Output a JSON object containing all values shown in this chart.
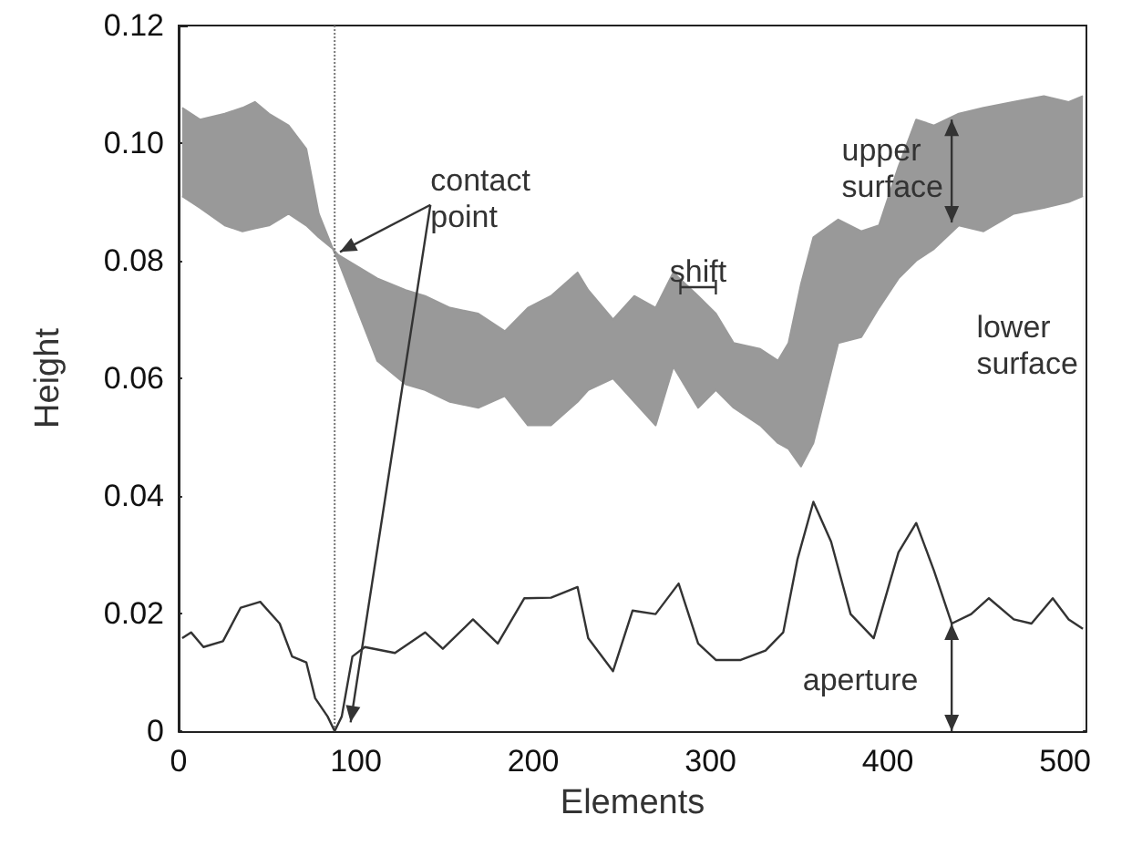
{
  "chart_data": {
    "type": "area",
    "xlabel": "Elements",
    "ylabel": "Height",
    "xlim": [
      0,
      512
    ],
    "xticks": [
      0,
      100,
      200,
      300,
      400,
      500
    ],
    "ylim": [
      0,
      0.12
    ],
    "yticks": [
      0,
      0.02,
      0.04,
      0.06,
      {
        "value": 0.08,
        "label": "0.08"
      },
      {
        "value": 0.1,
        "label": "0.10"
      },
      0.12
    ],
    "grid": false,
    "series": [
      {
        "type": "area",
        "color": "#999999",
        "x": [
          2,
          12,
          26,
          36,
          43,
          51,
          62,
          72,
          79,
          87,
          90,
          112,
          128,
          139,
          153,
          169,
          184,
          197,
          210,
          225,
          231,
          245,
          257,
          269,
          279,
          293,
          303,
          313,
          328,
          338,
          344,
          351,
          358,
          372,
          385,
          395,
          406,
          416,
          426,
          440,
          454,
          471,
          488,
          502,
          510
        ],
        "values": [
          0.106,
          0.104,
          0.105,
          0.106,
          0.107,
          0.105,
          0.103,
          0.099,
          0.088,
          0.082,
          0.081,
          0.077,
          0.075,
          0.074,
          0.072,
          0.071,
          0.068,
          0.072,
          0.074,
          0.078,
          0.075,
          0.07,
          0.074,
          0.072,
          0.078,
          0.074,
          0.071,
          0.066,
          0.065,
          0.063,
          0.066,
          0.076,
          0.084,
          0.087,
          0.085,
          0.086,
          0.096,
          0.104,
          0.103,
          0.105,
          0.106,
          0.107,
          0.108,
          0.107,
          0.108
        ]
      },
      {
        "type": "area",
        "color": "#999999",
        "x": [
          2,
          12,
          26,
          36,
          43,
          51,
          62,
          72,
          79,
          87,
          90,
          112,
          128,
          139,
          153,
          169,
          184,
          197,
          210,
          225,
          231,
          245,
          257,
          269,
          279,
          293,
          303,
          313,
          328,
          338,
          344,
          351,
          358,
          372,
          385,
          395,
          406,
          416,
          426,
          440,
          454,
          471,
          488,
          502,
          510
        ],
        "values": [
          0.091,
          0.089,
          0.086,
          0.085,
          0.0855,
          0.086,
          0.088,
          0.086,
          0.084,
          0.082,
          0.08,
          0.063,
          0.059,
          0.058,
          0.056,
          0.055,
          0.057,
          0.052,
          0.052,
          0.056,
          0.058,
          0.06,
          0.056,
          0.052,
          0.062,
          0.055,
          0.058,
          0.055,
          0.052,
          0.049,
          0.048,
          0.045,
          0.049,
          0.066,
          0.067,
          0.072,
          0.077,
          0.08,
          0.082,
          0.086,
          0.085,
          0.088,
          0.089,
          0.09,
          0.091
        ]
      },
      {
        "type": "line",
        "color": "#333333",
        "x": [
          2,
          7,
          14,
          25,
          35,
          46,
          57,
          64,
          72,
          77,
          84,
          88,
          92,
          98,
          105,
          122,
          139,
          149,
          166,
          180,
          195,
          210,
          225,
          231,
          245,
          256,
          269,
          282,
          293,
          303,
          317,
          331,
          341,
          349,
          358,
          368,
          379,
          392,
          406,
          416,
          426,
          436,
          447,
          457,
          471,
          481,
          493,
          502,
          510
        ],
        "values": [
          0.0158,
          0.0168,
          0.0143,
          0.0153,
          0.021,
          0.022,
          0.0183,
          0.0127,
          0.0117,
          0.0056,
          0.0025,
          0,
          0.0025,
          0.0127,
          0.0143,
          0.0133,
          0.0168,
          0.014,
          0.019,
          0.0149,
          0.0226,
          0.0227,
          0.0245,
          0.0158,
          0.0102,
          0.0205,
          0.0199,
          0.0251,
          0.0149,
          0.0121,
          0.0121,
          0.0137,
          0.0168,
          0.0292,
          0.039,
          0.0322,
          0.0199,
          0.0158,
          0.0304,
          0.0354,
          0.0273,
          0.0183,
          0.0199,
          0.0226,
          0.019,
          0.0183,
          0.0226,
          0.019,
          0.0174
        ]
      }
    ],
    "ref_lines": [
      {
        "axis": "x",
        "value": 88,
        "color": "#777777",
        "line_style": "dotted"
      }
    ],
    "annotations": [
      {
        "text": "contact point",
        "x": 88,
        "y": 0.081
      },
      {
        "text": "shift",
        "x": 293,
        "y": 0.0755
      },
      {
        "text": "upper surface",
        "x": 436,
        "y": 0.104
      },
      {
        "text": "lower surface",
        "x": 436,
        "y": 0.0865
      },
      {
        "text": "aperture",
        "x": 436,
        "y": 0.0183
      }
    ]
  }
}
